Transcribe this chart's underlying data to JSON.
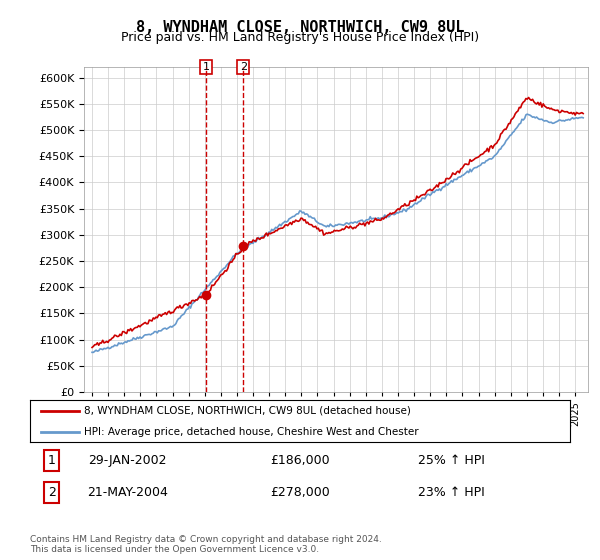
{
  "title": "8, WYNDHAM CLOSE, NORTHWICH, CW9 8UL",
  "subtitle": "Price paid vs. HM Land Registry's House Price Index (HPI)",
  "legend_line1": "8, WYNDHAM CLOSE, NORTHWICH, CW9 8UL (detached house)",
  "legend_line2": "HPI: Average price, detached house, Cheshire West and Chester",
  "sale1_label": "1",
  "sale1_date": "29-JAN-2002",
  "sale1_price": "£186,000",
  "sale1_hpi": "25% ↑ HPI",
  "sale2_label": "2",
  "sale2_date": "21-MAY-2004",
  "sale2_price": "£278,000",
  "sale2_hpi": "23% ↑ HPI",
  "footer": "Contains HM Land Registry data © Crown copyright and database right 2024.\nThis data is licensed under the Open Government Licence v3.0.",
  "ylim": [
    0,
    620000
  ],
  "ytick_step": 50000,
  "line_color_red": "#cc0000",
  "line_color_blue": "#6699cc",
  "sale1_year": 2002.08,
  "sale1_value": 186000,
  "sale2_year": 2004.39,
  "sale2_value": 278000,
  "vline1_year": 2002.08,
  "vline2_year": 2004.39,
  "background_color": "#ffffff",
  "grid_color": "#cccccc"
}
